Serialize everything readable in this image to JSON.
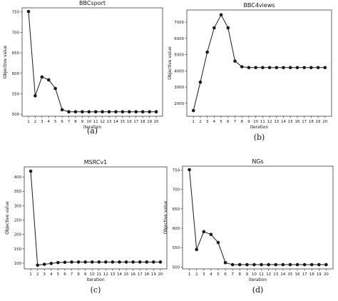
{
  "chart_data": [
    {
      "type": "line",
      "panel_label": "(a)",
      "title": "BBCsport",
      "xlabel": "iteration",
      "ylabel": "Objective value",
      "x": [
        1,
        2,
        3,
        4,
        5,
        6,
        7,
        8,
        9,
        10,
        11,
        12,
        13,
        14,
        15,
        16,
        17,
        18,
        19,
        20
      ],
      "y": [
        751,
        545,
        591,
        584,
        563,
        511,
        506,
        506,
        506,
        506,
        506,
        506,
        506,
        506,
        506,
        506,
        506,
        506,
        506,
        506
      ],
      "ylim": [
        495,
        760
      ],
      "yticks": [
        500,
        550,
        600,
        650,
        700,
        750
      ],
      "grid": false,
      "marker": "circle",
      "color": "#1a1a1a"
    },
    {
      "type": "line",
      "panel_label": "(b)",
      "title": "BBC4views",
      "xlabel": "iteration",
      "ylabel": "Objective value",
      "x": [
        1,
        2,
        3,
        4,
        5,
        6,
        7,
        8,
        9,
        10,
        11,
        12,
        13,
        14,
        15,
        16,
        17,
        18,
        19,
        20
      ],
      "y": [
        1550,
        3300,
        5150,
        6650,
        7450,
        6650,
        4600,
        4250,
        4200,
        4200,
        4200,
        4200,
        4200,
        4200,
        4200,
        4200,
        4200,
        4200,
        4200,
        4200
      ],
      "ylim": [
        1200,
        7750
      ],
      "yticks": [
        2000,
        3000,
        4000,
        5000,
        6000,
        7000
      ],
      "grid": false,
      "marker": "circle",
      "color": "#1a1a1a"
    },
    {
      "type": "line",
      "panel_label": "(c)",
      "title": "MSRCv1",
      "xlabel": "iteration",
      "ylabel": "Objective value",
      "x": [
        1,
        2,
        3,
        4,
        5,
        6,
        7,
        8,
        9,
        10,
        11,
        12,
        13,
        14,
        15,
        16,
        17,
        18,
        19,
        20
      ],
      "y": [
        420,
        93,
        96,
        99,
        102,
        103,
        104,
        104,
        104,
        104,
        104,
        104,
        104,
        104,
        104,
        104,
        104,
        104,
        104,
        104
      ],
      "ylim": [
        80,
        435
      ],
      "yticks": [
        100,
        150,
        200,
        250,
        300,
        350,
        400
      ],
      "grid": false,
      "marker": "circle",
      "color": "#1a1a1a"
    },
    {
      "type": "line",
      "panel_label": "(d)",
      "title": "NGs",
      "xlabel": "iteration",
      "ylabel": "Objective value",
      "x": [
        1,
        2,
        3,
        4,
        5,
        6,
        7,
        8,
        9,
        10,
        11,
        12,
        13,
        14,
        15,
        16,
        17,
        18,
        19,
        20
      ],
      "y": [
        751,
        545,
        591,
        584,
        563,
        511,
        506,
        506,
        506,
        506,
        506,
        506,
        506,
        506,
        506,
        506,
        506,
        506,
        506,
        506
      ],
      "ylim": [
        495,
        760
      ],
      "yticks": [
        500,
        550,
        600,
        650,
        700,
        750
      ],
      "grid": false,
      "marker": "circle",
      "color": "#1a1a1a"
    }
  ]
}
